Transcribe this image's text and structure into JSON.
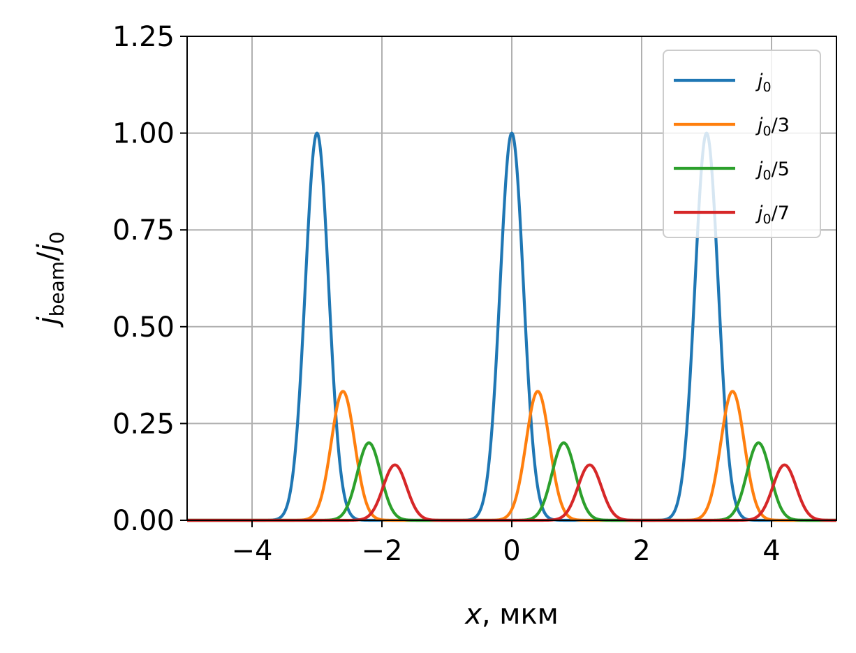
{
  "chart_data": {
    "type": "line",
    "xlabel": {
      "var": "x",
      "sep": ",",
      "unit": "мкм"
    },
    "ylabel": {
      "main": "j",
      "sub": "beam",
      "slash": "/",
      "ref": "j",
      "refsub": "0"
    },
    "xlim": [
      -5,
      5
    ],
    "ylim": [
      0,
      1.25
    ],
    "xticks": [
      -4,
      -2,
      0,
      2,
      4
    ],
    "xtick_labels": [
      "−4",
      "−2",
      "0",
      "2",
      "4"
    ],
    "yticks": [
      0,
      0.25,
      0.5,
      0.75,
      1.0,
      1.25
    ],
    "ytick_labels": [
      "0.00",
      "0.25",
      "0.50",
      "0.75",
      "1.00",
      "1.25"
    ],
    "grid": true,
    "legend_position": "top-right",
    "peak_model": "gaussian",
    "peak_sigma": 0.18,
    "series": [
      {
        "name": {
          "main": "j",
          "sub": "0",
          "suffix": ""
        },
        "color": "#1f77b4",
        "peaks": [
          {
            "x": -3.0,
            "y": 1.0
          },
          {
            "x": 0.0,
            "y": 1.0
          },
          {
            "x": 3.0,
            "y": 1.0
          }
        ]
      },
      {
        "name": {
          "main": "j",
          "sub": "0",
          "suffix": "/3"
        },
        "color": "#ff7f0e",
        "peaks": [
          {
            "x": -2.6,
            "y": 0.333
          },
          {
            "x": 0.4,
            "y": 0.333
          },
          {
            "x": 3.4,
            "y": 0.333
          }
        ]
      },
      {
        "name": {
          "main": "j",
          "sub": "0",
          "suffix": "/5"
        },
        "color": "#2ca02c",
        "peaks": [
          {
            "x": -2.2,
            "y": 0.2
          },
          {
            "x": 0.8,
            "y": 0.2
          },
          {
            "x": 3.8,
            "y": 0.2
          }
        ]
      },
      {
        "name": {
          "main": "j",
          "sub": "0",
          "suffix": "/7"
        },
        "color": "#d62728",
        "peaks": [
          {
            "x": -1.8,
            "y": 0.143
          },
          {
            "x": 1.2,
            "y": 0.143
          },
          {
            "x": 4.2,
            "y": 0.143
          }
        ]
      }
    ]
  }
}
